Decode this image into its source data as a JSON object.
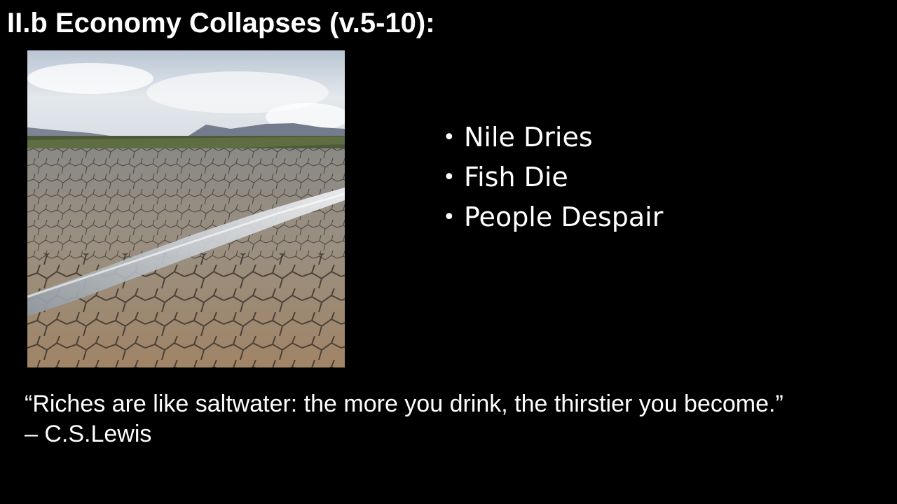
{
  "slide": {
    "title": "II.b Economy Collapses (v.5-10):",
    "bullets": [
      {
        "text": "Nile Dries"
      },
      {
        "text": "Fish Die"
      },
      {
        "text": "People Despair"
      }
    ],
    "bullet_glyph": "•",
    "quote": {
      "text": "“Riches are like saltwater: the more you drink, the thirstier you become.”",
      "attribution": "– C.S.Lewis"
    }
  },
  "image": {
    "icon": "dried-riverbed-photo"
  },
  "colors": {
    "background": "#000000",
    "text": "#ffffff"
  }
}
